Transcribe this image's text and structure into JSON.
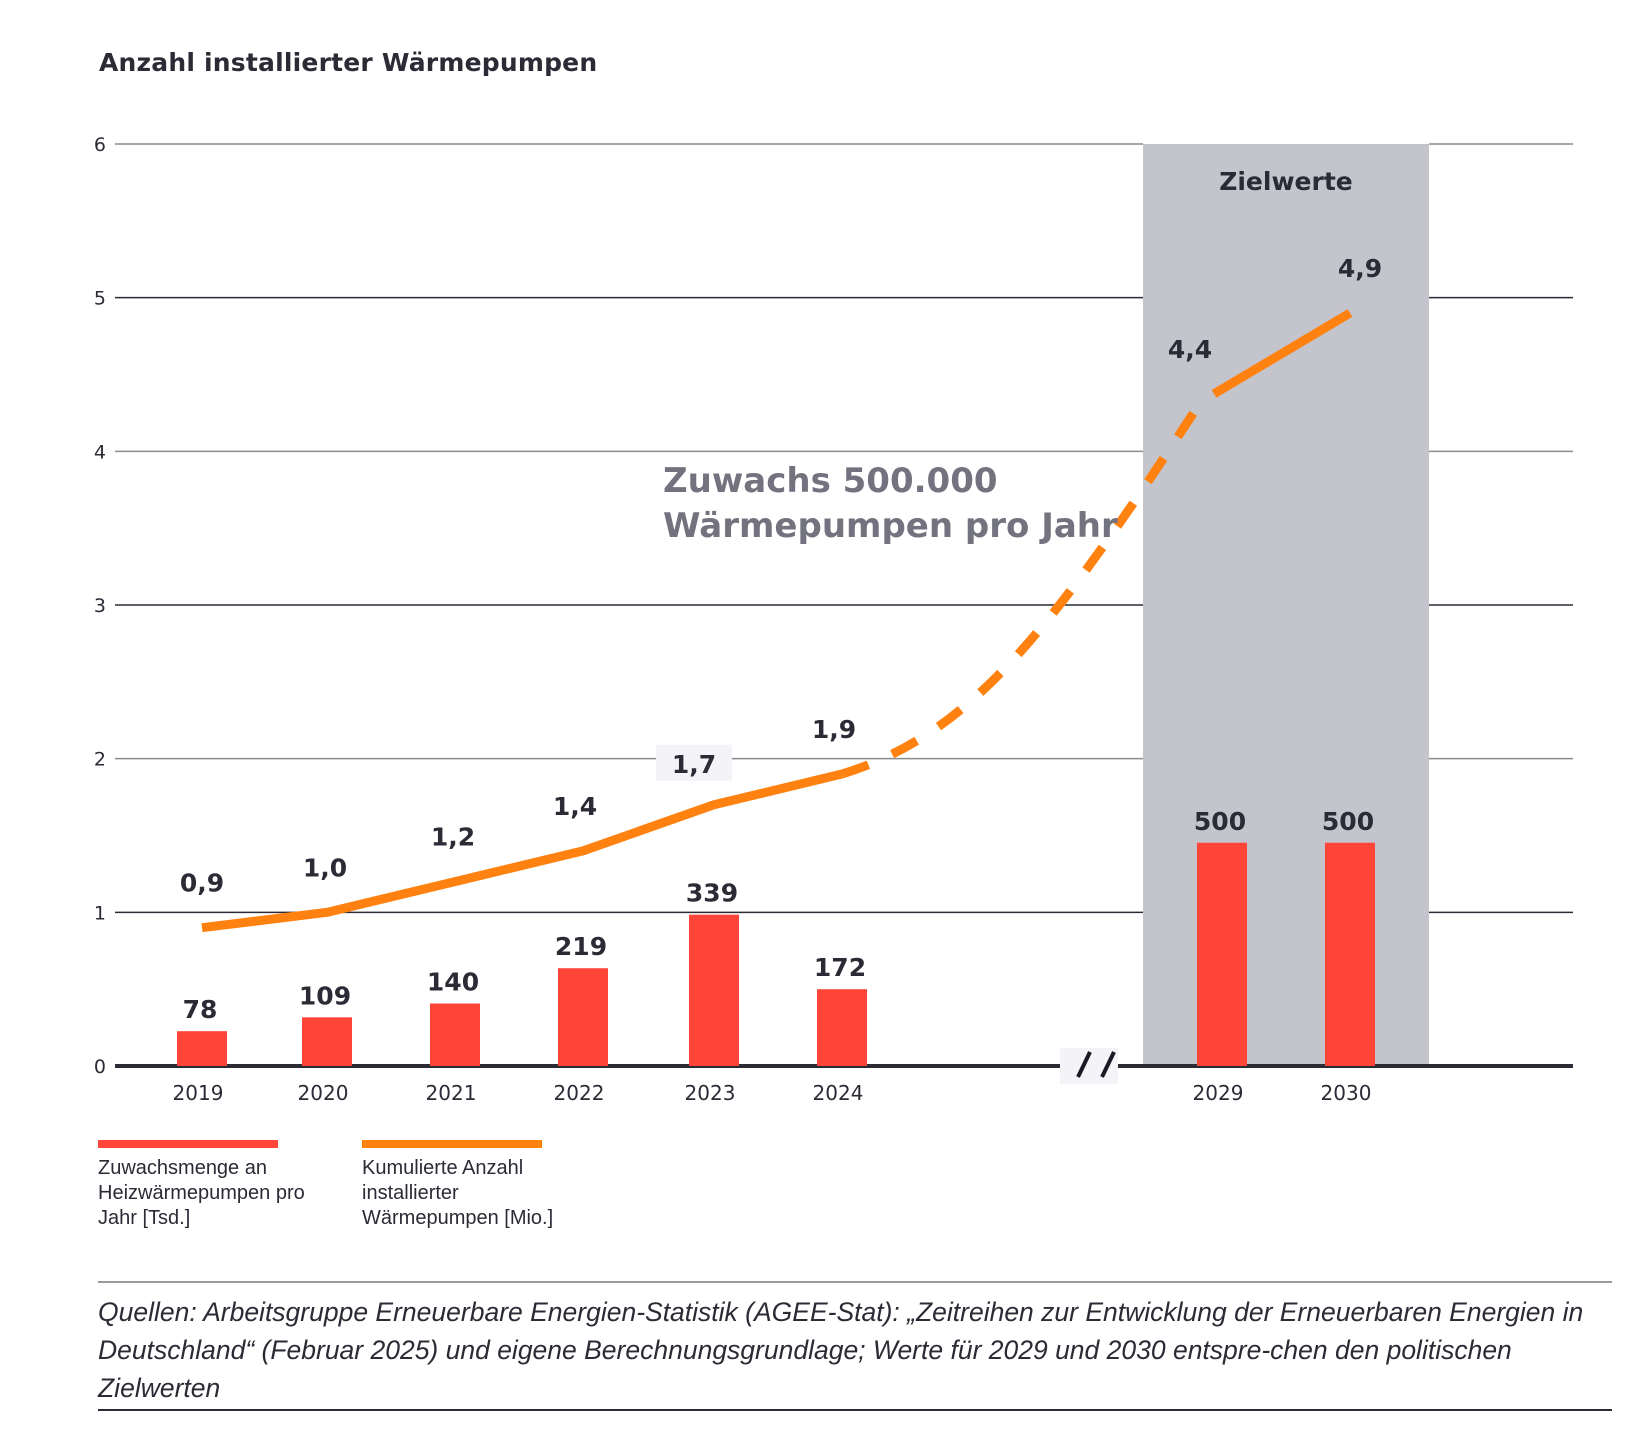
{
  "chart_data": {
    "type": "bar+line",
    "title": "Anzahl installierter Wärmepumpen",
    "categories": [
      "2019",
      "2020",
      "2021",
      "2022",
      "2023",
      "2024",
      "2029",
      "2030"
    ],
    "y_axis": {
      "ylim": [
        0,
        6
      ],
      "ticks": [
        "0",
        "1",
        "2",
        "3",
        "4",
        "5",
        "6"
      ],
      "grid": true
    },
    "axis_break": "//",
    "series": [
      {
        "name": "Zuwachsmenge an Heizwärmepumpen pro Jahr  [Tsd.]",
        "type": "bar",
        "color": "#ff4438",
        "values": [
          78,
          109,
          140,
          219,
          339,
          172,
          500,
          500
        ],
        "labels": [
          "78",
          "109",
          "140",
          "219",
          "339",
          "172",
          "500",
          "500"
        ],
        "plotted_scale_note": "bar heights drawn so that 339 Tsd ≈ 1 on the axis"
      },
      {
        "name": "Kumulierte Anzahl installierter Wärmepumpen [Mio.]",
        "type": "line",
        "color": "#ff8210",
        "values": [
          0.9,
          1.0,
          1.2,
          1.4,
          1.7,
          1.9,
          4.4,
          4.9
        ],
        "labels": [
          "0,9",
          "1,0",
          "1,2",
          "1,4",
          "1,7",
          "1,9",
          "4,4",
          "4,9"
        ],
        "projection": "dashed between 2024 and 2029"
      }
    ],
    "target_region": {
      "label": "Zielwerte",
      "categories": [
        "2029",
        "2030"
      ],
      "color": "#c4c4cd"
    },
    "annotation": {
      "line1": "Zuwachs 500.000",
      "line2": "Wärmepumpen pro Jahr"
    },
    "legend_placement": "bottom-left"
  },
  "legend": [
    {
      "label": "Zuwachsmenge an\nHeizwärmepumpen pro\nJahr  [Tsd.]",
      "color": "#ff4438"
    },
    {
      "label": "Kumulierte Anzahl\ninstallierter\nWärmepumpen [Mio.]",
      "color": "#ff8210"
    }
  ],
  "source": "Quellen: Arbeitsgruppe Erneuerbare Energien-Statistik (AGEE-Stat): „Zeitreihen zur Entwicklung der Erneuerbaren Energien in Deutschland“ (Februar 2025) und eigene Berechnungsgrundlage; Werte für 2029 und 2030 entspre-chen den politischen Zielwerten"
}
